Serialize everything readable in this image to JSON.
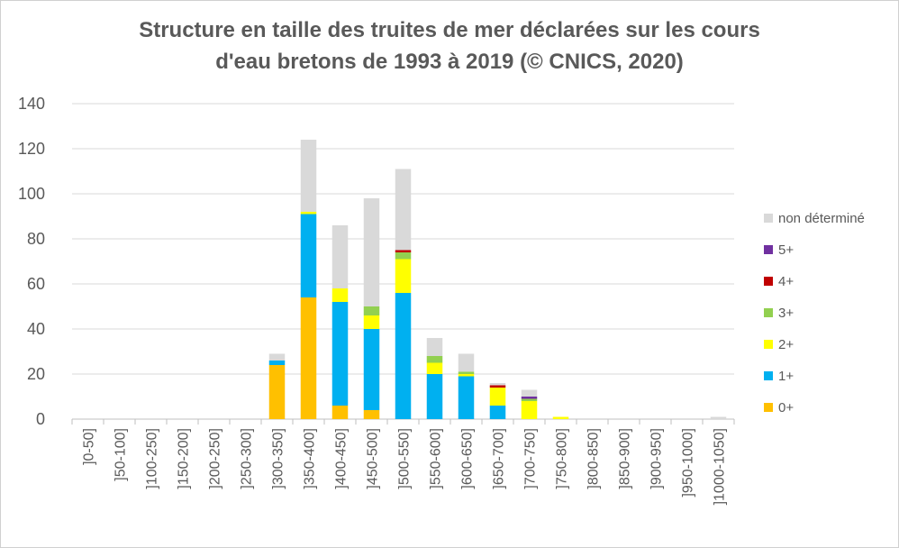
{
  "chart_data": {
    "type": "bar",
    "stacked": true,
    "title_line1": "Structure en taille des truites de mer déclarées sur les cours",
    "title_line2": "d'eau bretons de 1993 à 2019 (© CNICS, 2020)",
    "xlabel": "",
    "ylabel": "",
    "ylim": [
      0,
      140
    ],
    "yticks": [
      0,
      20,
      40,
      60,
      80,
      100,
      120,
      140
    ],
    "grid": true,
    "legend_position": "right",
    "categories": [
      "]0-50]",
      "]50-100]",
      "]100-250]",
      "]150-200]",
      "]200-250]",
      "]250-300]",
      "]300-350]",
      "]350-400]",
      "]400-450]",
      "]450-500]",
      "]500-550]",
      "]550-600]",
      "]600-650]",
      "]650-700]",
      "]700-750]",
      "]750-800]",
      "]800-850]",
      "]850-900]",
      "]900-950]",
      "]950-1000]",
      "]1000-1050]"
    ],
    "series": [
      {
        "name": "0+",
        "color": "#FFC000",
        "values": [
          0,
          0,
          0,
          0,
          0,
          0,
          24,
          54,
          6,
          4,
          0,
          0,
          0,
          0,
          0,
          0,
          0,
          0,
          0,
          0,
          0
        ]
      },
      {
        "name": "1+",
        "color": "#00B0F0",
        "values": [
          0,
          0,
          0,
          0,
          0,
          0,
          2,
          37,
          46,
          36,
          56,
          20,
          19,
          6,
          0,
          0,
          0,
          0,
          0,
          0,
          0
        ]
      },
      {
        "name": "2+",
        "color": "#FFFF00",
        "values": [
          0,
          0,
          0,
          0,
          0,
          0,
          0,
          1,
          6,
          6,
          15,
          5,
          1,
          8,
          8,
          1,
          0,
          0,
          0,
          0,
          0
        ]
      },
      {
        "name": "3+",
        "color": "#92D050",
        "values": [
          0,
          0,
          0,
          0,
          0,
          0,
          0,
          0,
          0,
          4,
          3,
          3,
          1,
          0,
          1,
          0,
          0,
          0,
          0,
          0,
          0
        ]
      },
      {
        "name": "4+",
        "color": "#C00000",
        "values": [
          0,
          0,
          0,
          0,
          0,
          0,
          0,
          0,
          0,
          0,
          1,
          0,
          0,
          1,
          0,
          0,
          0,
          0,
          0,
          0,
          0
        ]
      },
      {
        "name": "5+",
        "color": "#7030A0",
        "values": [
          0,
          0,
          0,
          0,
          0,
          0,
          0,
          0,
          0,
          0,
          0,
          0,
          0,
          0,
          1,
          0,
          0,
          0,
          0,
          0,
          0
        ]
      },
      {
        "name": "non déterminé",
        "color": "#D9D9D9",
        "values": [
          0,
          0,
          0,
          0,
          0,
          0,
          3,
          32,
          28,
          48,
          36,
          8,
          8,
          1,
          3,
          0,
          0,
          0,
          0,
          0,
          1
        ]
      }
    ]
  }
}
